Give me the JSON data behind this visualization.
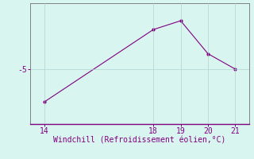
{
  "x": [
    14,
    18,
    19,
    20,
    21
  ],
  "y": [
    -6.5,
    -3.2,
    -2.8,
    -4.3,
    -5.0
  ],
  "line_color": "#800080",
  "marker": ".",
  "marker_size": 4,
  "background_color": "#d8f5f0",
  "grid_color": "#aacfcf",
  "xlabel": "Windchill (Refroidissement éolien,°C)",
  "xlabel_color": "#800080",
  "xlabel_fontsize": 7.0,
  "ytick_labels": [
    "-5"
  ],
  "ytick_values": [
    -5
  ],
  "xtick_values": [
    14,
    18,
    19,
    20,
    21
  ],
  "xlim": [
    13.5,
    21.5
  ],
  "ylim": [
    -7.5,
    -2.0
  ],
  "tick_color": "#800080",
  "tick_fontsize": 7.0,
  "spine_color": "#808080",
  "bottom_spine_color": "#800080"
}
